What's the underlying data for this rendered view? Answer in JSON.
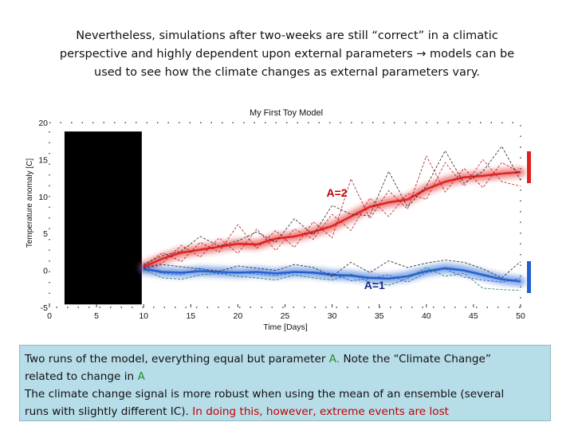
{
  "slide": {
    "title_line1": "Nevertheless, simulations after two-weeks are still “correct” in a climatic",
    "title_line2": "perspective and highly dependent upon external parameters → models can be",
    "title_line3": "used to see how the climate changes as external parameters vary."
  },
  "caption": {
    "line1_a": "Two runs of the model, everything equal but parameter ",
    "line1_param": "A.",
    "line1_b": " Note the “Climate Change”",
    "line2_a": "related to change in ",
    "line2_param": "A",
    "line3": "The climate change signal is more robust when using the mean of an ensemble (several",
    "line4_a": "runs with slightly different IC). ",
    "line4_red": "In doing this, however, extreme events are lost"
  },
  "colors": {
    "accent_red": "#e02020",
    "accent_blue": "#2060d0",
    "param_green": "#1f8f2f"
  },
  "chart_data": {
    "type": "line",
    "title": "My First Toy Model",
    "xlabel": "Time [Days]",
    "ylabel": "Temperature anomaly [C]",
    "xlim": [
      0,
      50
    ],
    "ylim": [
      -5,
      20
    ],
    "xticks": [
      0,
      5,
      10,
      15,
      20,
      25,
      30,
      35,
      40,
      45,
      50
    ],
    "yticks": [
      -5,
      0,
      5,
      10,
      15,
      20
    ],
    "spinup_block": [
      0.5,
      9.8
    ],
    "annotations": [
      {
        "text": "A=2",
        "x": 30.5,
        "y": 10
      },
      {
        "text": "A=1",
        "x": 34.5,
        "y": -2.5
      }
    ],
    "series": [
      {
        "name": "A=2 ensemble mean",
        "color": "#e02020",
        "x": [
          10,
          12,
          14,
          16,
          18,
          20,
          22,
          24,
          26,
          28,
          30,
          32,
          34,
          36,
          38,
          40,
          42,
          44,
          46,
          48,
          50
        ],
        "y": [
          0.5,
          1.6,
          2.4,
          2.8,
          3.2,
          3.6,
          3.5,
          4.3,
          4.6,
          5.2,
          6.0,
          7.3,
          8.6,
          9.2,
          9.6,
          11.0,
          12.0,
          12.6,
          12.8,
          13.1,
          13.3
        ]
      },
      {
        "name": "A=2 member 1",
        "color": "#b01010",
        "x": [
          10,
          12,
          14,
          16,
          18,
          20,
          22,
          24,
          26,
          28,
          30,
          32,
          34,
          36,
          38,
          40,
          42,
          44,
          46,
          48,
          50
        ],
        "y": [
          0.6,
          2.4,
          1.2,
          3.8,
          2.5,
          6.2,
          3.0,
          5.4,
          3.1,
          6.6,
          4.4,
          12.4,
          7.0,
          10.8,
          8.3,
          15.5,
          10.6,
          13.8,
          11.2,
          14.6,
          13.2
        ]
      },
      {
        "name": "A=2 member 2",
        "color": "#c02020",
        "x": [
          10,
          12,
          14,
          16,
          18,
          20,
          22,
          24,
          26,
          28,
          30,
          32,
          34,
          36,
          38,
          40,
          42,
          44,
          46,
          48,
          50
        ],
        "y": [
          0.4,
          1.0,
          3.4,
          1.8,
          4.4,
          2.3,
          5.6,
          2.7,
          5.6,
          4.2,
          7.6,
          5.4,
          9.8,
          7.3,
          10.4,
          9.6,
          14.6,
          11.4,
          15.0,
          12.0,
          11.4
        ]
      },
      {
        "name": "A=2 member 3",
        "color": "#222222",
        "x": [
          10,
          12,
          14,
          16,
          18,
          20,
          22,
          24,
          26,
          28,
          30,
          32,
          34,
          36,
          38,
          40,
          42,
          44,
          46,
          48,
          50
        ],
        "y": [
          0.8,
          2.0,
          2.6,
          4.6,
          3.3,
          4.0,
          5.2,
          3.8,
          7.0,
          4.8,
          8.8,
          7.6,
          7.4,
          13.4,
          8.6,
          11.4,
          16.2,
          11.8,
          13.4,
          16.8,
          12.2
        ]
      },
      {
        "name": "A=1 ensemble mean",
        "color": "#2060d0",
        "x": [
          10,
          12,
          14,
          16,
          18,
          20,
          22,
          24,
          26,
          28,
          30,
          32,
          34,
          36,
          38,
          40,
          42,
          44,
          46,
          48,
          50
        ],
        "y": [
          0.2,
          -0.2,
          -0.3,
          -0.1,
          -0.2,
          -0.3,
          -0.2,
          -0.4,
          -0.2,
          -0.3,
          -0.6,
          -0.7,
          -1.0,
          -1.1,
          -0.8,
          -0.1,
          0.3,
          0.0,
          -0.6,
          -1.2,
          -1.5
        ]
      },
      {
        "name": "A=1 member 1",
        "color": "#1a7a5a",
        "x": [
          10,
          12,
          14,
          16,
          18,
          20,
          22,
          24,
          26,
          28,
          30,
          32,
          34,
          36,
          38,
          40,
          42,
          44,
          46,
          48,
          50
        ],
        "y": [
          0.1,
          -1.0,
          -1.2,
          -0.6,
          -0.4,
          -0.8,
          -1.0,
          -1.3,
          -0.6,
          -1.0,
          -1.3,
          -0.5,
          -1.6,
          -2.0,
          -1.1,
          0.4,
          -0.8,
          -0.4,
          -2.4,
          -2.6,
          -2.7
        ]
      },
      {
        "name": "A=1 member 2",
        "color": "#222222",
        "x": [
          10,
          12,
          14,
          16,
          18,
          20,
          22,
          24,
          26,
          28,
          30,
          32,
          34,
          36,
          38,
          40,
          42,
          44,
          46,
          48,
          50
        ],
        "y": [
          0.3,
          0.8,
          0.5,
          0.2,
          -0.1,
          0.6,
          0.3,
          0.0,
          0.8,
          0.4,
          -0.8,
          1.1,
          -0.3,
          1.3,
          0.4,
          1.0,
          1.4,
          1.1,
          0.2,
          -1.0,
          1.2
        ]
      },
      {
        "name": "A=1 member 3",
        "color": "#2a4fd0",
        "x": [
          10,
          12,
          14,
          16,
          18,
          20,
          22,
          24,
          26,
          28,
          30,
          32,
          34,
          36,
          38,
          40,
          42,
          44,
          46,
          48,
          50
        ],
        "y": [
          0.2,
          -0.4,
          -0.6,
          0.3,
          -0.5,
          -0.2,
          -0.5,
          -0.7,
          -0.3,
          -0.2,
          -0.4,
          -1.4,
          -1.1,
          -0.6,
          -1.6,
          -0.3,
          0.2,
          -0.9,
          -1.3,
          -1.6,
          -1.1
        ]
      }
    ]
  }
}
